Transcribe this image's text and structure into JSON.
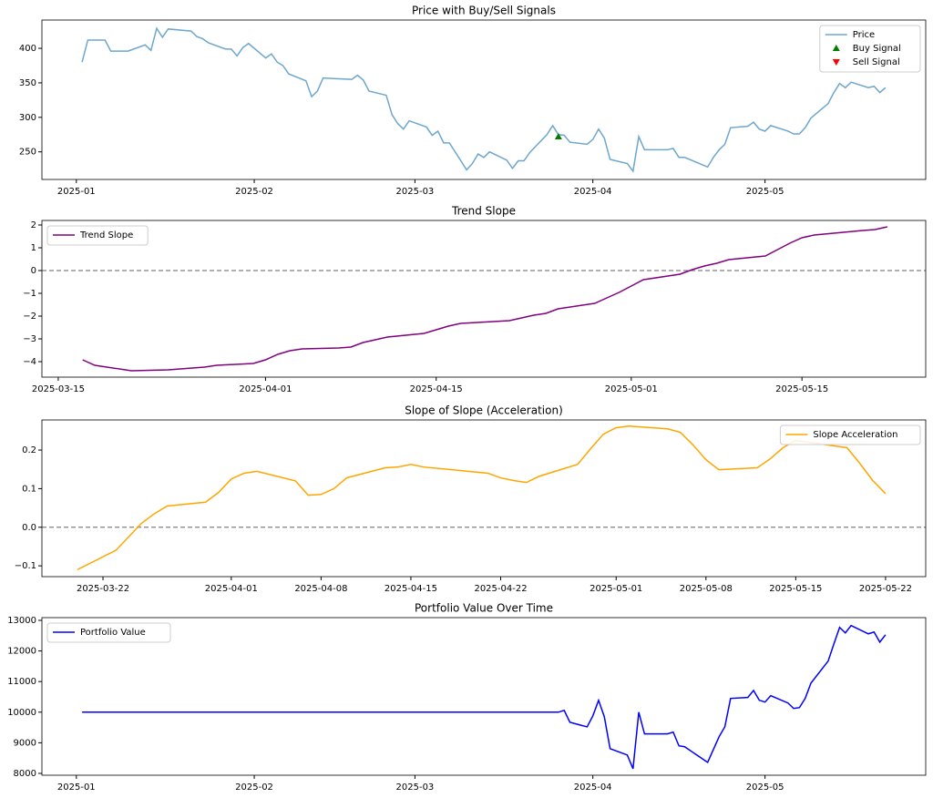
{
  "chart_data": [
    {
      "type": "line",
      "title": "Price with Buy/Sell Signals",
      "legend": "upper right",
      "xlim": [
        -6,
        148
      ],
      "xticks": [
        {
          "value": 0,
          "label": "2025-01"
        },
        {
          "value": 31,
          "label": "2025-02"
        },
        {
          "value": 59,
          "label": "2025-03"
        },
        {
          "value": 90,
          "label": "2025-04"
        },
        {
          "value": 120,
          "label": "2025-05"
        }
      ],
      "ylim": [
        210,
        441
      ],
      "yticks": [
        250,
        300,
        350,
        400
      ],
      "series": [
        {
          "name": "Price",
          "color": "#1f77b4",
          "alpha": 0.65,
          "x": [
            1,
            2,
            5,
            6,
            7,
            9,
            12,
            13,
            14,
            15,
            16,
            20,
            21,
            22,
            23,
            26,
            27,
            28,
            29,
            30,
            33,
            34,
            35,
            36,
            37,
            40,
            41,
            42,
            43,
            48,
            49,
            50,
            51,
            54,
            55,
            56,
            57,
            58,
            61,
            62,
            63,
            64,
            65,
            68,
            69,
            70,
            71,
            72,
            75,
            76,
            77,
            78,
            79,
            82,
            83,
            84,
            85,
            86,
            89,
            90,
            91,
            92,
            93,
            96,
            97,
            98,
            99,
            103,
            104,
            105,
            106,
            110,
            111,
            112,
            113,
            114,
            117,
            118,
            119,
            120,
            121,
            124,
            125,
            126,
            127,
            128,
            131,
            132,
            133,
            134,
            135,
            138,
            139,
            140,
            141
          ],
          "values": [
            380,
            412,
            412,
            396,
            396,
            396,
            405,
            397,
            429,
            416,
            428,
            425,
            417,
            414,
            408,
            399,
            399,
            389,
            401,
            407,
            386,
            392,
            380,
            375,
            363,
            353,
            330,
            338,
            357,
            355,
            361,
            354,
            338,
            332,
            304,
            291,
            283,
            295,
            286,
            274,
            280,
            263,
            263,
            224,
            233,
            247,
            242,
            250,
            238,
            226,
            237,
            237,
            249,
            275,
            288,
            275,
            274,
            264,
            261,
            268,
            283,
            270,
            239,
            233,
            222,
            272,
            253,
            253,
            255,
            242,
            242,
            228,
            242,
            253,
            261,
            285,
            287,
            293,
            283,
            280,
            288,
            280,
            276,
            276,
            285,
            299,
            320,
            336,
            349,
            343,
            351,
            343,
            345,
            336,
            343
          ]
        },
        {
          "name": "Buy Signal",
          "color": "green",
          "marker": "triangle-up",
          "x": [
            84
          ],
          "values": [
            272
          ]
        },
        {
          "name": "Sell Signal",
          "color": "red",
          "marker": "triangle-down",
          "x": [],
          "values": []
        }
      ]
    },
    {
      "type": "line",
      "title": "Trend Slope",
      "legend": "upper left",
      "xlim": [
        71.66,
        144.15
      ],
      "xticks": [
        {
          "value": 73,
          "label": "2025-03-15"
        },
        {
          "value": 90,
          "label": "2025-04-01"
        },
        {
          "value": 104,
          "label": "2025-04-15"
        },
        {
          "value": 120,
          "label": "2025-05-01"
        },
        {
          "value": 134,
          "label": "2025-05-15"
        }
      ],
      "ylim": [
        -4.68,
        2.2
      ],
      "yticks": [
        {
          "value": -4,
          "label": "−4"
        },
        {
          "value": -3,
          "label": "−3"
        },
        {
          "value": -2,
          "label": "−2"
        },
        {
          "value": -1,
          "label": "−1"
        },
        0,
        1,
        2
      ],
      "reference_line": {
        "y": 0,
        "color": "#808080",
        "style": "dashed"
      },
      "x": [
        75,
        76,
        79,
        82,
        85,
        86,
        89,
        90,
        91,
        92,
        93,
        96,
        97,
        98,
        99,
        100,
        103,
        104,
        105,
        106,
        110,
        111,
        112,
        113,
        114,
        117,
        118,
        119,
        120,
        121,
        124,
        125,
        126,
        127,
        128,
        131,
        132,
        133,
        134,
        135,
        139,
        140,
        141
      ],
      "series": [
        {
          "name": "Trend Slope",
          "color": "purple",
          "values": [
            -3.92,
            -4.16,
            -4.4,
            -4.36,
            -4.24,
            -4.16,
            -4.08,
            -3.92,
            -3.68,
            -3.52,
            -3.44,
            -3.4,
            -3.36,
            -3.16,
            -3.04,
            -2.92,
            -2.76,
            -2.6,
            -2.44,
            -2.32,
            -2.2,
            -2.08,
            -1.96,
            -1.88,
            -1.68,
            -1.44,
            -1.2,
            -0.96,
            -0.68,
            -0.4,
            -0.16,
            0.04,
            0.2,
            0.32,
            0.48,
            0.64,
            0.92,
            1.2,
            1.44,
            1.56,
            1.76,
            1.8,
            1.92
          ]
        }
      ]
    },
    {
      "type": "line",
      "title": "Slope of Slope (Acceleration)",
      "legend": "upper right",
      "xlim": [
        75.24,
        144.13
      ],
      "xticks": [
        {
          "value": 80,
          "label": "2025-03-22"
        },
        {
          "value": 90,
          "label": "2025-04-01"
        },
        {
          "value": 97,
          "label": "2025-04-08"
        },
        {
          "value": 104,
          "label": "2025-04-15"
        },
        {
          "value": 111,
          "label": "2025-04-22"
        },
        {
          "value": 120,
          "label": "2025-05-01"
        },
        {
          "value": 127,
          "label": "2025-05-08"
        },
        {
          "value": 134,
          "label": "2025-05-15"
        },
        {
          "value": 141,
          "label": "2025-05-22"
        }
      ],
      "ylim": [
        -0.128,
        0.278
      ],
      "yticks": [
        {
          "value": -0.1,
          "label": "−0.1"
        },
        {
          "value": 0,
          "label": "0.0"
        },
        0.1,
        0.2
      ],
      "reference_line": {
        "y": 0,
        "color": "#808080",
        "style": "dashed"
      },
      "x": [
        78,
        81,
        83,
        84,
        85,
        88,
        89,
        90,
        91,
        92,
        95,
        96,
        97,
        98,
        99,
        102,
        103,
        104,
        105,
        110,
        111,
        112,
        113,
        114,
        117,
        118,
        119,
        120,
        121,
        124,
        125,
        126,
        127,
        128,
        131,
        132,
        133,
        134,
        135,
        138,
        139,
        140,
        141
      ],
      "series": [
        {
          "name": "Slope Acceleration",
          "color": "orange",
          "values": [
            -0.11,
            -0.06,
            0.01,
            0.035,
            0.055,
            0.065,
            0.09,
            0.125,
            0.14,
            0.145,
            0.12,
            0.083,
            0.085,
            0.1,
            0.128,
            0.154,
            0.156,
            0.163,
            0.156,
            0.14,
            0.128,
            0.121,
            0.116,
            0.132,
            0.163,
            0.203,
            0.241,
            0.258,
            0.262,
            0.255,
            0.246,
            0.213,
            0.175,
            0.149,
            0.154,
            0.177,
            0.206,
            0.225,
            0.22,
            0.206,
            0.165,
            0.121,
            0.087
          ]
        }
      ]
    },
    {
      "type": "line",
      "title": "Portfolio Value Over Time",
      "legend": "upper left",
      "xlim": [
        -6,
        148
      ],
      "xticks": [
        {
          "value": 0,
          "label": "2025-01"
        },
        {
          "value": 31,
          "label": "2025-02"
        },
        {
          "value": 59,
          "label": "2025-03"
        },
        {
          "value": 90,
          "label": "2025-04"
        },
        {
          "value": 120,
          "label": "2025-05"
        }
      ],
      "ylim": [
        7940,
        13089
      ],
      "yticks": [
        8000,
        9000,
        10000,
        11000,
        12000,
        13000
      ],
      "x": [
        1,
        84,
        85,
        86,
        89,
        90,
        91,
        92,
        93,
        96,
        97,
        98,
        99,
        103,
        104,
        105,
        106,
        110,
        111,
        112,
        113,
        114,
        117,
        118,
        119,
        120,
        121,
        124,
        125,
        126,
        127,
        128,
        131,
        132,
        133,
        134,
        135,
        138,
        139,
        140,
        141
      ],
      "series": [
        {
          "name": "Portfolio Value",
          "color": "blue",
          "values": [
            10000,
            10000,
            10060,
            9670,
            9520,
            9880,
            10390,
            9850,
            8810,
            8600,
            8150,
            10000,
            9290,
            9290,
            9350,
            8900,
            8870,
            8360,
            8780,
            9200,
            9520,
            10450,
            10480,
            10710,
            10390,
            10330,
            10540,
            10300,
            10120,
            10150,
            10450,
            10950,
            11670,
            12230,
            12770,
            12590,
            12830,
            12560,
            12620,
            12290,
            12530
          ]
        }
      ]
    }
  ]
}
